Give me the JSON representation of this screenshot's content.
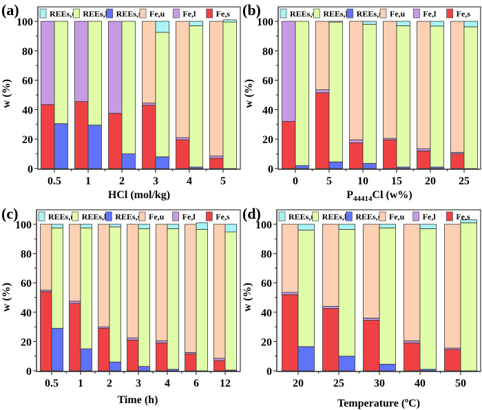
{
  "legend": [
    {
      "key": "REEs_u",
      "label": "REEs,u",
      "color": "#a8f4f6"
    },
    {
      "key": "REEs_l",
      "label": "REEs,l",
      "color": "#e0fca8"
    },
    {
      "key": "REEs_s",
      "label": "REEs,s",
      "color": "#5f73fb"
    },
    {
      "key": "Fe_u",
      "label": "Fe,u",
      "color": "#fdd0b4"
    },
    {
      "key": "Fe_l",
      "label": "Fe,l",
      "color": "#c79be4"
    },
    {
      "key": "Fe_s",
      "label": "Fe,s",
      "color": "#ef4144"
    }
  ],
  "chart_data": [
    {
      "type": "bar",
      "panel_label": "(a)",
      "stacked": true,
      "grouped": true,
      "xlabel": "HCl (mol/kg)",
      "ylabel": "w (%)",
      "ylim": [
        0,
        100
      ],
      "yticks": [
        0,
        20,
        40,
        60,
        80,
        100
      ],
      "legend_position": "top",
      "categories": [
        "0.5",
        "1",
        "2",
        "3",
        "4",
        "5"
      ],
      "Fe": {
        "s": [
          43.5,
          45.5,
          37.5,
          43,
          19.5,
          7
        ],
        "l": [
          56.5,
          54.5,
          62.5,
          1.5,
          1.5,
          1.5
        ],
        "u": [
          0,
          0,
          0,
          55.5,
          79,
          91.5
        ]
      },
      "REEs": {
        "s": [
          30.5,
          29.5,
          10,
          8,
          1,
          -0.5
        ],
        "l": [
          69.5,
          70.5,
          90,
          84.5,
          96,
          99.5
        ],
        "u": [
          0,
          0,
          0,
          7.5,
          3,
          1.5
        ]
      }
    },
    {
      "type": "bar",
      "panel_label": "(b)",
      "stacked": true,
      "grouped": true,
      "xlabel": "P44414Cl (w%)",
      "xlabel_main": "P",
      "xlabel_sub": "44414",
      "xlabel_rest": "Cl (w%)",
      "ylabel": "w (%)",
      "ylim": [
        0,
        100
      ],
      "yticks": [
        0,
        20,
        40,
        60,
        80,
        100
      ],
      "legend_position": "top",
      "categories": [
        "0",
        "5",
        "10",
        "15",
        "20",
        "25"
      ],
      "Fe": {
        "s": [
          32,
          51.5,
          17.5,
          19.5,
          12,
          10
        ],
        "l": [
          68,
          2,
          2,
          1,
          1.5,
          1
        ],
        "u": [
          0,
          46.5,
          80.5,
          79.5,
          86.5,
          89
        ]
      },
      "REEs": {
        "s": [
          2,
          4.5,
          3.5,
          1,
          1,
          0
        ],
        "l": [
          98,
          95,
          94.5,
          96,
          95.8,
          96.3
        ],
        "u": [
          0,
          0.5,
          2,
          3,
          3.2,
          3.7
        ]
      }
    },
    {
      "type": "bar",
      "panel_label": "(c)",
      "stacked": true,
      "grouped": true,
      "xlabel": "Time (h)",
      "ylabel": "w (%)",
      "ylim": [
        0,
        100
      ],
      "yticks": [
        0,
        20,
        40,
        60,
        80,
        100
      ],
      "legend_position": "top",
      "categories": [
        "0.5",
        "1",
        "2",
        "3",
        "4",
        "6",
        "12"
      ],
      "Fe": {
        "s": [
          54,
          46,
          29,
          21,
          19,
          11.5,
          7
        ],
        "l": [
          1,
          1.5,
          1,
          1.5,
          1.5,
          1,
          1.5
        ],
        "u": [
          45,
          52.5,
          70,
          77.5,
          79.5,
          87.5,
          91.5
        ]
      },
      "REEs": {
        "s": [
          29,
          15,
          6,
          3,
          1,
          -0.5,
          0.5
        ],
        "l": [
          68.5,
          82.5,
          92.2,
          94,
          96,
          96.5,
          94.3
        ],
        "u": [
          2.5,
          2.5,
          1.8,
          3,
          3,
          4.5,
          5.2
        ]
      }
    },
    {
      "type": "bar",
      "panel_label": "(d)",
      "stacked": true,
      "grouped": true,
      "xlabel": "Temperature (°C)",
      "xlabel_pre": "Temperature (",
      "xlabel_sup": "o",
      "xlabel_post": "C)",
      "ylabel": "w (%)",
      "ylim": [
        0,
        100
      ],
      "yticks": [
        0,
        20,
        40,
        60,
        80,
        100
      ],
      "legend_position": "top",
      "categories": [
        "20",
        "25",
        "30",
        "40",
        "50"
      ],
      "Fe": {
        "s": [
          52,
          42.5,
          34.5,
          19,
          14.5
        ],
        "l": [
          1.5,
          1.5,
          1.5,
          1.5,
          1
        ],
        "u": [
          46.5,
          56,
          64,
          79.5,
          84.5
        ]
      },
      "REEs": {
        "s": [
          16.5,
          10,
          4.5,
          1,
          -0.5
        ],
        "l": [
          79.5,
          86.5,
          93,
          96,
          101
        ],
        "u": [
          4,
          3.5,
          2.5,
          3,
          2
        ]
      }
    }
  ]
}
